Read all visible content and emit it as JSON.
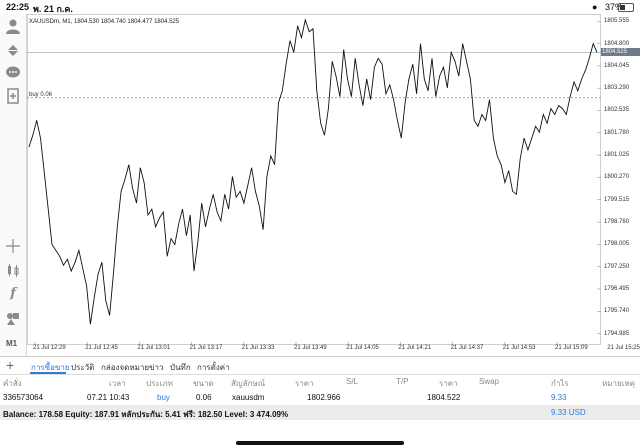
{
  "status_bar": {
    "time": "22:25",
    "date": "พ. 21 ก.ค.",
    "battery": "37%"
  },
  "chart": {
    "header": "XAUUSDm, M1, 1804.530 1804.740 1804.477 1804.525",
    "buy_line_label": "buy 0.06",
    "current_price_tag": "1804.525",
    "price_ticks": [
      "1805.555",
      "1804.800",
      "1804.045",
      "1803.290",
      "1802.535",
      "1801.780",
      "1801.025",
      "1800.270",
      "1799.515",
      "1798.760",
      "1798.005",
      "1797.250",
      "1796.495",
      "1795.740",
      "1794.985"
    ],
    "time_ticks": [
      "21 Jul 12:29",
      "21 Jul 12:45",
      "21 Jul 13:01",
      "21 Jul 13:17",
      "21 Jul 13:33",
      "21 Jul 13:49",
      "21 Jul 14:05",
      "21 Jul 14:21",
      "21 Jul 14:37",
      "21 Jul 14:53",
      "21 Jul 15:09",
      "21 Jul 15:25"
    ]
  },
  "chart_data": {
    "type": "line",
    "title": "XAUUSDm, M1",
    "xlabel": "",
    "ylabel": "",
    "ylim": [
      1794.6,
      1805.8
    ],
    "grid": true,
    "buy_level": 1802.966,
    "values": [
      1801.3,
      1801.7,
      1802.2,
      1801.6,
      1800.4,
      1799.2,
      1798.0,
      1797.8,
      1797.6,
      1797.3,
      1797.5,
      1797.1,
      1797.4,
      1797.8,
      1797.2,
      1796.6,
      1795.3,
      1796.2,
      1797.0,
      1797.4,
      1796.1,
      1795.6,
      1797.0,
      1798.6,
      1799.8,
      1800.2,
      1800.7,
      1799.9,
      1799.4,
      1800.6,
      1800.1,
      1799.0,
      1799.2,
      1798.6,
      1798.9,
      1799.1,
      1797.6,
      1798.2,
      1798.0,
      1798.7,
      1799.2,
      1798.3,
      1799.0,
      1797.1,
      1798.1,
      1799.4,
      1798.6,
      1799.2,
      1799.7,
      1799.1,
      1798.8,
      1799.7,
      1799.2,
      1800.3,
      1799.6,
      1799.8,
      1799.4,
      1800.0,
      1800.6,
      1799.8,
      1799.3,
      1798.5,
      1800.3,
      1801.0,
      1800.7,
      1802.8,
      1803.2,
      1804.1,
      1804.9,
      1804.5,
      1805.4,
      1805.0,
      1805.6,
      1805.2,
      1805.3,
      1803.2,
      1802.1,
      1801.7,
      1802.6,
      1804.2,
      1803.7,
      1803.0,
      1804.6,
      1803.6,
      1803.0,
      1804.3,
      1803.4,
      1802.7,
      1803.6,
      1802.9,
      1804.0,
      1804.3,
      1804.1,
      1803.1,
      1803.4,
      1802.9,
      1802.2,
      1801.6,
      1802.8,
      1803.6,
      1804.1,
      1803.1,
      1804.8,
      1803.6,
      1803.2,
      1804.3,
      1803.0,
      1803.7,
      1804.0,
      1803.3,
      1804.5,
      1804.2,
      1803.7,
      1804.8,
      1804.2,
      1803.6,
      1802.2,
      1802.0,
      1802.4,
      1802.2,
      1802.9,
      1801.6,
      1801.0,
      1800.7,
      1800.1,
      1800.5,
      1799.8,
      1799.7,
      1800.9,
      1801.6,
      1801.2,
      1801.6,
      1802.0,
      1801.8,
      1802.4,
      1802.1,
      1802.6,
      1802.4,
      1802.7,
      1802.6,
      1802.4,
      1803.0,
      1803.5,
      1803.2,
      1803.6,
      1803.9,
      1804.3,
      1804.8,
      1804.5
    ]
  },
  "sidebar": {
    "label_m1": "M1"
  },
  "tabs": {
    "items": [
      "การซื้อขาย",
      "ประวัติ",
      "กล่องจดหมาย",
      "ข่าว",
      "บันทึก",
      "การตั้งค่า"
    ]
  },
  "table": {
    "headers": [
      "คำสั่ง",
      "เวลา",
      "ประเภท",
      "ขนาด",
      "สัญลักษณ์",
      "ราคา",
      "S/L",
      "T/P",
      "ราคา",
      "Swap",
      "กำไร",
      "หมายเหตุ"
    ],
    "row": {
      "order": "336573064",
      "time": "07.21 10:43",
      "type": "buy",
      "volume": "0.06",
      "symbol": "xauusdm",
      "open_price": "1802.966",
      "current_price": "1804.522",
      "profit": "9.33"
    }
  },
  "summary": {
    "text": "Balance: 178.58 Equity: 187.91 หลักประกัน: 5.41 ฟรี: 182.50 Level: 3 474.09%",
    "profit": "9.33  USD"
  },
  "colors": {
    "accent": "#2f7cd6",
    "line": "#111111",
    "price_tag": "#6c7a89"
  }
}
